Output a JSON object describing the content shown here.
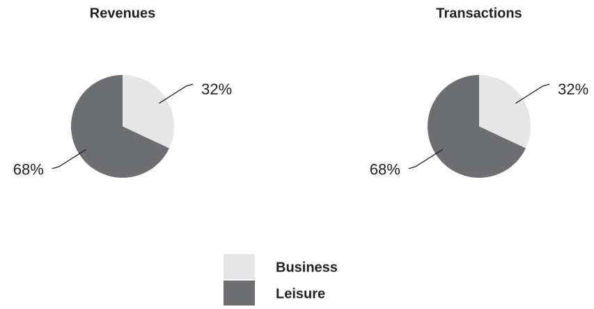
{
  "chart_data": [
    {
      "type": "pie",
      "title": "Revenues",
      "categories": [
        "Business",
        "Leisure"
      ],
      "values": [
        32,
        68
      ],
      "value_labels": [
        "32%",
        "68%"
      ],
      "colors": [
        "#e6e6e6",
        "#6d6e71"
      ]
    },
    {
      "type": "pie",
      "title": "Transactions",
      "categories": [
        "Business",
        "Leisure"
      ],
      "values": [
        32,
        68
      ],
      "value_labels": [
        "32%",
        "68%"
      ],
      "colors": [
        "#e6e6e6",
        "#6d6e71"
      ]
    }
  ]
}
